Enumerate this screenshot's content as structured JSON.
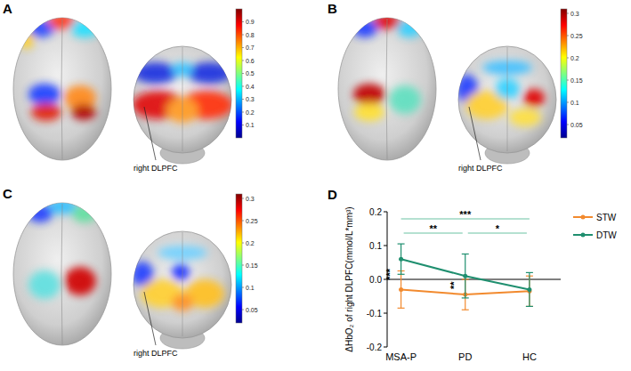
{
  "chart_data": [
    {
      "type": "brain_map",
      "label": "A",
      "annotation": "right DLPFC",
      "colorbar_lim": [
        0,
        1
      ],
      "colorbar_ticks": [
        0.1,
        0.2,
        0.3,
        0.4,
        0.5,
        0.6,
        0.7,
        0.8,
        0.9
      ]
    },
    {
      "type": "brain_map",
      "label": "B",
      "annotation": "right DLPFC",
      "colorbar_lim": [
        0.02,
        0.31
      ],
      "colorbar_ticks": [
        0.05,
        0.1,
        0.15,
        0.2,
        0.25,
        0.3
      ]
    },
    {
      "type": "brain_map",
      "label": "C",
      "annotation": "right DLPFC",
      "colorbar_lim": [
        0.02,
        0.31
      ],
      "colorbar_ticks": [
        0.05,
        0.1,
        0.15,
        0.2,
        0.25,
        0.3
      ]
    },
    {
      "type": "line",
      "label": "D",
      "categories": [
        "MSA-P",
        "PD",
        "HC"
      ],
      "ylabel": "ΔHbO₂ of right DLPFC(mmol/L*mm³)",
      "ylim": [
        -0.2,
        0.2
      ],
      "yticks": [
        -0.2,
        -0.1,
        {
          "value": 0,
          "label": "0.0"
        },
        0.1,
        0.2
      ],
      "legend": "right",
      "series": [
        {
          "name": "STW",
          "color": "#f28a2e",
          "marker": "circle",
          "values": [
            -0.03,
            -0.045,
            -0.035
          ],
          "errors": [
            0.055,
            0.045,
            0.045
          ]
        },
        {
          "name": "DTW",
          "color": "#1f8f6f",
          "marker": "circle",
          "values": [
            0.06,
            0.01,
            -0.03
          ],
          "errors": [
            0.045,
            0.065,
            0.05
          ]
        }
      ],
      "comparisons": [
        {
          "groups": [
            0,
            2
          ],
          "label": "***"
        },
        {
          "groups": [
            0,
            1
          ],
          "label": "**"
        },
        {
          "groups": [
            1,
            2
          ],
          "label": "*"
        }
      ],
      "within": [
        {
          "category": 0,
          "label": "***"
        },
        {
          "category": 1,
          "label": "**"
        }
      ]
    }
  ]
}
